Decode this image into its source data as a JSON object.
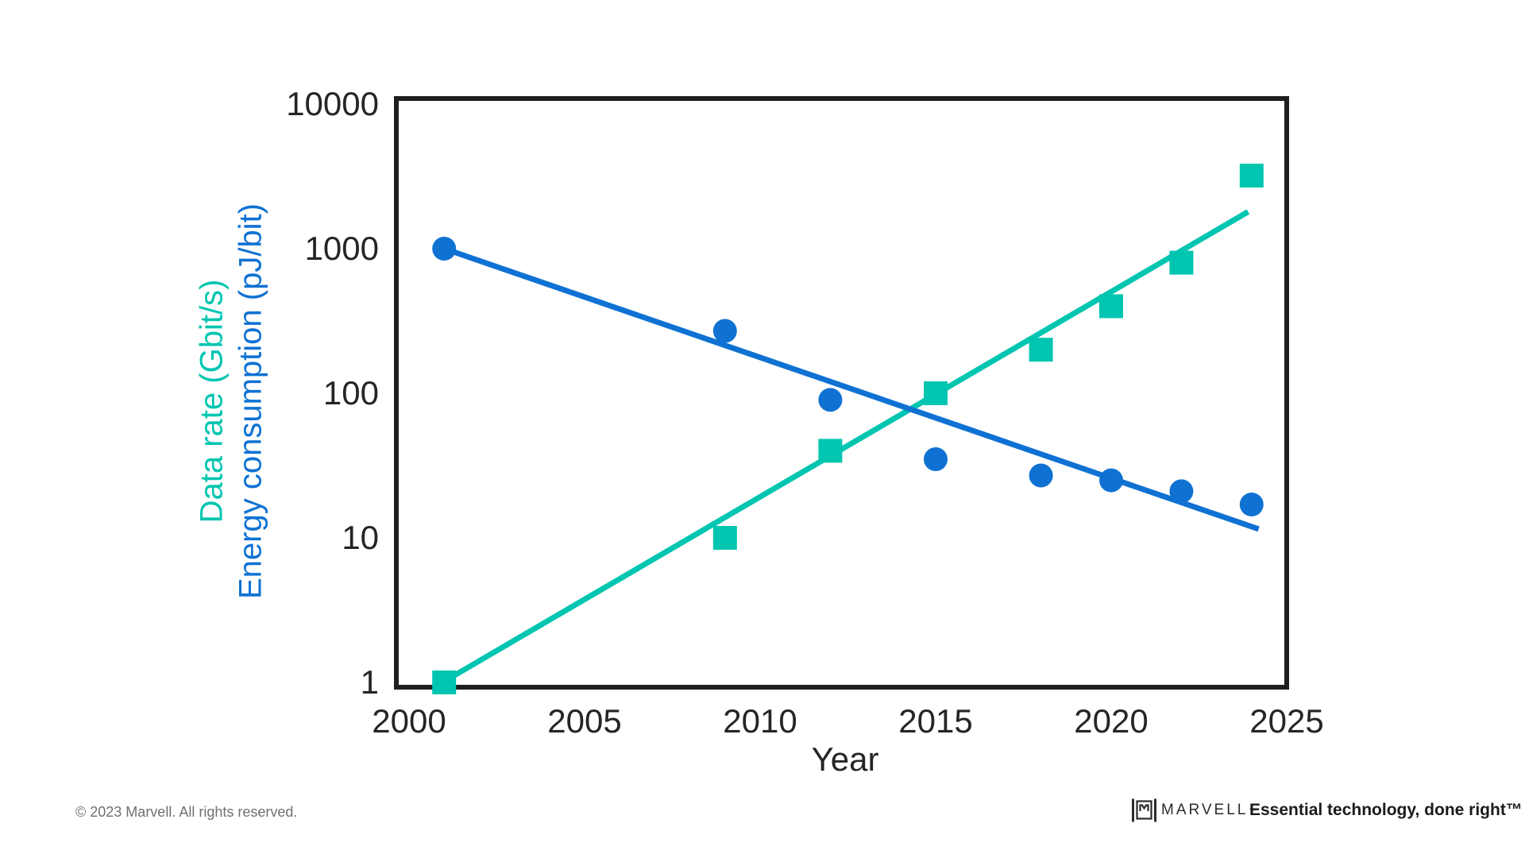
{
  "page": {
    "background": "#ffffff"
  },
  "chart_data": {
    "type": "scatter",
    "title": "",
    "xlabel": "Year",
    "ylabel_left_line1": "Data rate (Gbit/s)",
    "ylabel_left_line2": "Energy consumption (pJ/bit)",
    "y_scale": "log",
    "xlim": [
      1999.7,
      2025.1
    ],
    "ylim": [
      1,
      10000
    ],
    "grid": false,
    "x_ticks": [
      2000,
      2005,
      2010,
      2015,
      2020,
      2025
    ],
    "y_ticks": [
      10000,
      1000,
      100,
      10,
      1
    ],
    "axis_titles": [
      {
        "text": "Data rate (Gbit/s)",
        "color": "#00C5B0"
      },
      {
        "text": "Energy consumption (pJ/bit)",
        "color": "#0F72D3"
      }
    ],
    "series": [
      {
        "name": "Data rate (Gbit/s)",
        "marker": "square",
        "color": "#00C5B0",
        "points": [
          {
            "x": 2001,
            "y": 1
          },
          {
            "x": 2009,
            "y": 10
          },
          {
            "x": 2012,
            "y": 40
          },
          {
            "x": 2015,
            "y": 100
          },
          {
            "x": 2018,
            "y": 200
          },
          {
            "x": 2020,
            "y": 400
          },
          {
            "x": 2022,
            "y": 800
          },
          {
            "x": 2024,
            "y": 3200
          }
        ],
        "trend": {
          "x1": 2001.1,
          "y1": 1.05,
          "x2": 2023.9,
          "y2": 1800
        }
      },
      {
        "name": "Energy consumption (pJ/bit)",
        "marker": "circle",
        "color": "#0F72D3",
        "points": [
          {
            "x": 2001,
            "y": 1000
          },
          {
            "x": 2009,
            "y": 270
          },
          {
            "x": 2012,
            "y": 90
          },
          {
            "x": 2015,
            "y": 35
          },
          {
            "x": 2018,
            "y": 27
          },
          {
            "x": 2020,
            "y": 25
          },
          {
            "x": 2022,
            "y": 21
          },
          {
            "x": 2024,
            "y": 17
          }
        ],
        "trend": {
          "x1": 2000.95,
          "y1": 1010,
          "x2": 2024.2,
          "y2": 11.5
        }
      }
    ]
  },
  "footer": {
    "copyright": "© 2023 Marvell. All rights reserved.",
    "brand_wordmark": "MARVELL",
    "brand_tm": "™",
    "tagline": "Essential technology, done right™"
  }
}
